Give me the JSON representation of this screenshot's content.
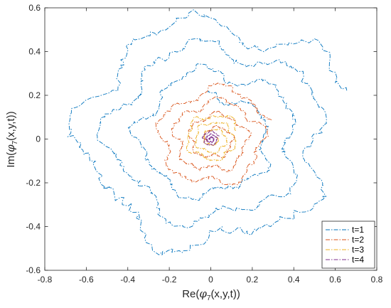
{
  "chart_data": {
    "type": "line",
    "title": "",
    "xlabel_parts": {
      "prefix": "Re(",
      "symbol": "φ",
      "subscript": "7",
      "suffix": "(x,y,t))"
    },
    "ylabel_parts": {
      "prefix": "Im(",
      "symbol": "φ",
      "subscript": "7",
      "suffix": "(x,y,t))"
    },
    "xlim": [
      -0.8,
      0.8
    ],
    "ylim": [
      -0.6,
      0.6
    ],
    "xticks": [
      -0.8,
      -0.6,
      -0.4,
      -0.2,
      0,
      0.2,
      0.4,
      0.6,
      0.8
    ],
    "xtick_labels": [
      "-0.8",
      "-0.6",
      "-0.4",
      "-0.2",
      "0",
      "0.2",
      "0.4",
      "0.6",
      "0.8"
    ],
    "yticks": [
      -0.6,
      -0.4,
      -0.2,
      0,
      0.2,
      0.4,
      0.6
    ],
    "ytick_labels": [
      "-0.6",
      "-0.4",
      "-0.2",
      "0",
      "0.2",
      "0.4",
      "0.6"
    ],
    "grid": false,
    "legend_position": "bottom-right",
    "line_style": "dash-dot",
    "series": [
      {
        "name": "t=1",
        "color": "#0072BD",
        "loops": [
          {
            "cx": -0.02,
            "cy": 0.0,
            "r": 0.62,
            "turns": 1.0,
            "start_angle": 0.3,
            "seed": 11
          },
          {
            "cx": 0.02,
            "cy": -0.01,
            "r": 0.5,
            "turns": 1.0,
            "start_angle": 1.2,
            "seed": 17
          },
          {
            "cx": 0.04,
            "cy": 0.0,
            "r": 0.4,
            "turns": 1.0,
            "start_angle": 2.0,
            "seed": 23
          }
        ],
        "spiral": {
          "r0": 0.62,
          "r1": 0.22,
          "turns": 3.2,
          "cx": 0.0,
          "cy": 0.0,
          "seed": 5
        }
      },
      {
        "name": "t=2",
        "color": "#D95319",
        "spiral": {
          "r0": 0.27,
          "r1": 0.04,
          "turns": 3.5,
          "cx": 0.02,
          "cy": 0.0,
          "seed": 7
        }
      },
      {
        "name": "t=3",
        "color": "#EDB120",
        "spiral": {
          "r0": 0.13,
          "r1": 0.02,
          "turns": 3.0,
          "cx": 0.01,
          "cy": 0.0,
          "seed": 9
        }
      },
      {
        "name": "t=4",
        "color": "#7E2F8E",
        "spiral": {
          "r0": 0.04,
          "r1": 0.005,
          "turns": 2.5,
          "cx": 0.0,
          "cy": 0.0,
          "seed": 13
        }
      }
    ]
  }
}
